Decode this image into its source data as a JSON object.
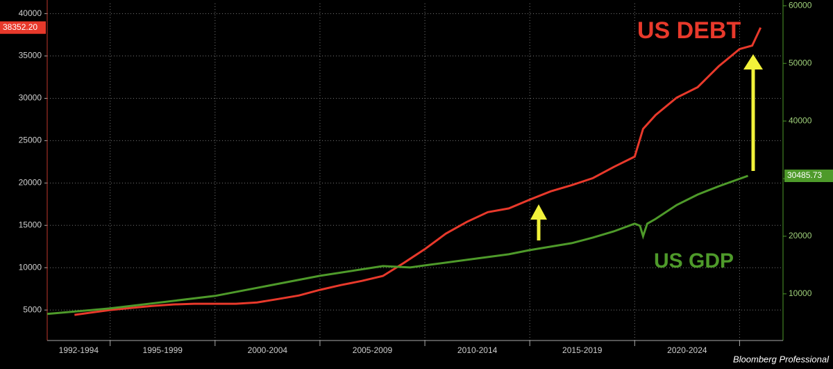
{
  "chart_data": {
    "type": "line",
    "annotations": [
      "US DEBT",
      "US GDP"
    ],
    "source": "Bloomberg Professional",
    "xlim": [
      1992,
      2027.07
    ],
    "xticks": [
      {
        "value": 1993.5,
        "label": "1992-1994"
      },
      {
        "value": 1997.5,
        "label": "1995-1999"
      },
      {
        "value": 2002.5,
        "label": "2000-2004"
      },
      {
        "value": 2007.5,
        "label": "2005-2009"
      },
      {
        "value": 2012.5,
        "label": "2010-2014"
      },
      {
        "value": 2017.5,
        "label": "2015-2019"
      },
      {
        "value": 2022.5,
        "label": "2020-2024"
      }
    ],
    "xgrid": [
      1995,
      2000,
      2005,
      2010,
      2015,
      2020,
      2025
    ],
    "ylim": [
      1400,
      41200
    ],
    "yticks": [
      5000,
      10000,
      15000,
      20000,
      25000,
      30000,
      35000,
      40000
    ],
    "y2lim": [
      1900,
      60400
    ],
    "y2ticks": [
      10000,
      20000,
      30000,
      40000,
      50000,
      60000
    ],
    "grid": true,
    "series": [
      {
        "name": "US DEBT",
        "color": "#e8392b",
        "axis": "y",
        "last_label": "38352.20",
        "x": [
          1993.3,
          1995,
          1996,
          1997,
          1998,
          1999,
          2000,
          2001,
          2002,
          2003,
          2004,
          2005,
          2006,
          2007,
          2008,
          2009,
          2010,
          2011,
          2012,
          2013,
          2014,
          2015,
          2016,
          2017,
          2018,
          2019,
          2020,
          2020.4,
          2021,
          2022,
          2023,
          2024,
          2025,
          2025.6,
          2026
        ],
        "values": [
          4430,
          5000,
          5250,
          5490,
          5660,
          5740,
          5740,
          5740,
          5900,
          6300,
          6720,
          7380,
          7950,
          8440,
          9020,
          10570,
          12200,
          14020,
          15410,
          16560,
          17000,
          18030,
          19020,
          19750,
          20570,
          21890,
          23110,
          26390,
          28030,
          30080,
          31310,
          33770,
          35820,
          36230,
          38352.2
        ]
      },
      {
        "name": "US GDP",
        "color": "#4e9a2a",
        "axis": "y2",
        "last_label": "30485.73",
        "x": [
          1992,
          1995,
          2000,
          2005,
          2008,
          2009.3,
          2010,
          2012,
          2014,
          2015,
          2016,
          2017,
          2018,
          2019,
          2020,
          2020.25,
          2020.4,
          2020.6,
          2021,
          2022,
          2023,
          2024,
          2025.4
        ],
        "values": [
          6506,
          7470,
          9640,
          13130,
          14820,
          14580,
          14940,
          15900,
          16870,
          17590,
          18190,
          18800,
          19760,
          20840,
          22170,
          21810,
          20000,
          22170,
          23010,
          25420,
          27230,
          28670,
          30485.73
        ]
      }
    ]
  }
}
